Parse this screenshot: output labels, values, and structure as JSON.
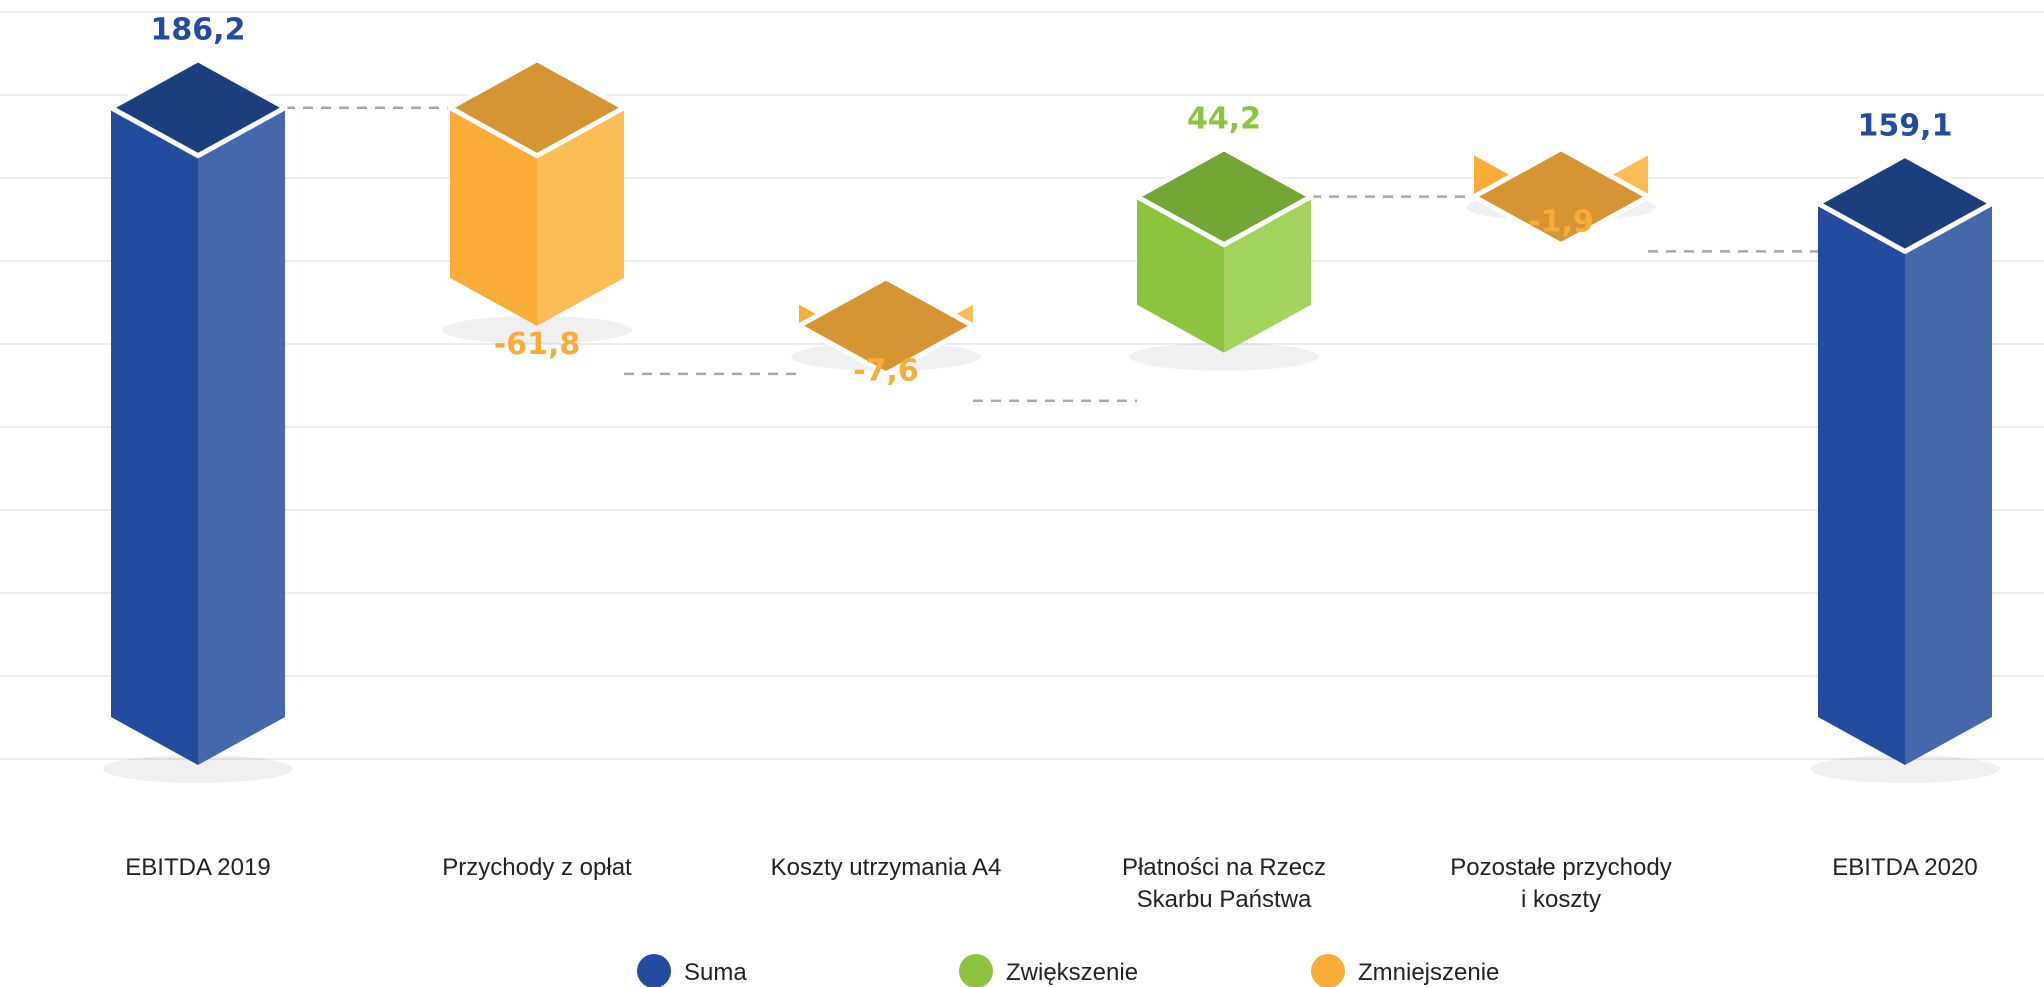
{
  "chart_data": {
    "type": "bar",
    "subtype": "waterfall-3d",
    "categories": [
      [
        "EBITDA 2019"
      ],
      [
        "Przychody z opłat"
      ],
      [
        "Koszty utrzymania A4"
      ],
      [
        "Płatności na Rzecz",
        "Skarbu Państwa"
      ],
      [
        "Pozostałe przychody",
        "i koszty"
      ],
      [
        "EBITDA 2020"
      ]
    ],
    "values": [
      186.2,
      -61.8,
      -7.6,
      44.2,
      -1.9,
      159.1
    ],
    "value_labels": [
      "186,2",
      "-61,8",
      "-7,6",
      "44,2",
      "-1,9",
      "159,1"
    ],
    "kinds": [
      "total",
      "decrease",
      "decrease",
      "increase",
      "decrease",
      "total"
    ],
    "legend": [
      {
        "kind": "total",
        "label": "Suma"
      },
      {
        "kind": "increase",
        "label": "Zwiększenie"
      },
      {
        "kind": "decrease",
        "label": "Zmniejszenie"
      }
    ],
    "legend_position": "bottom",
    "grid": true,
    "colors": {
      "total": {
        "front": "#234c9e",
        "side": "#4568ad",
        "top": "#1b3e7d",
        "label": "#234c9e"
      },
      "increase": {
        "front": "#8cc43d",
        "side": "#a3d35c",
        "top": "#72a635",
        "label": "#8cc43d"
      },
      "decrease": {
        "front": "#f9ac38",
        "side": "#fcbd56",
        "top": "#d69432",
        "label": "#f9ac38"
      }
    }
  }
}
